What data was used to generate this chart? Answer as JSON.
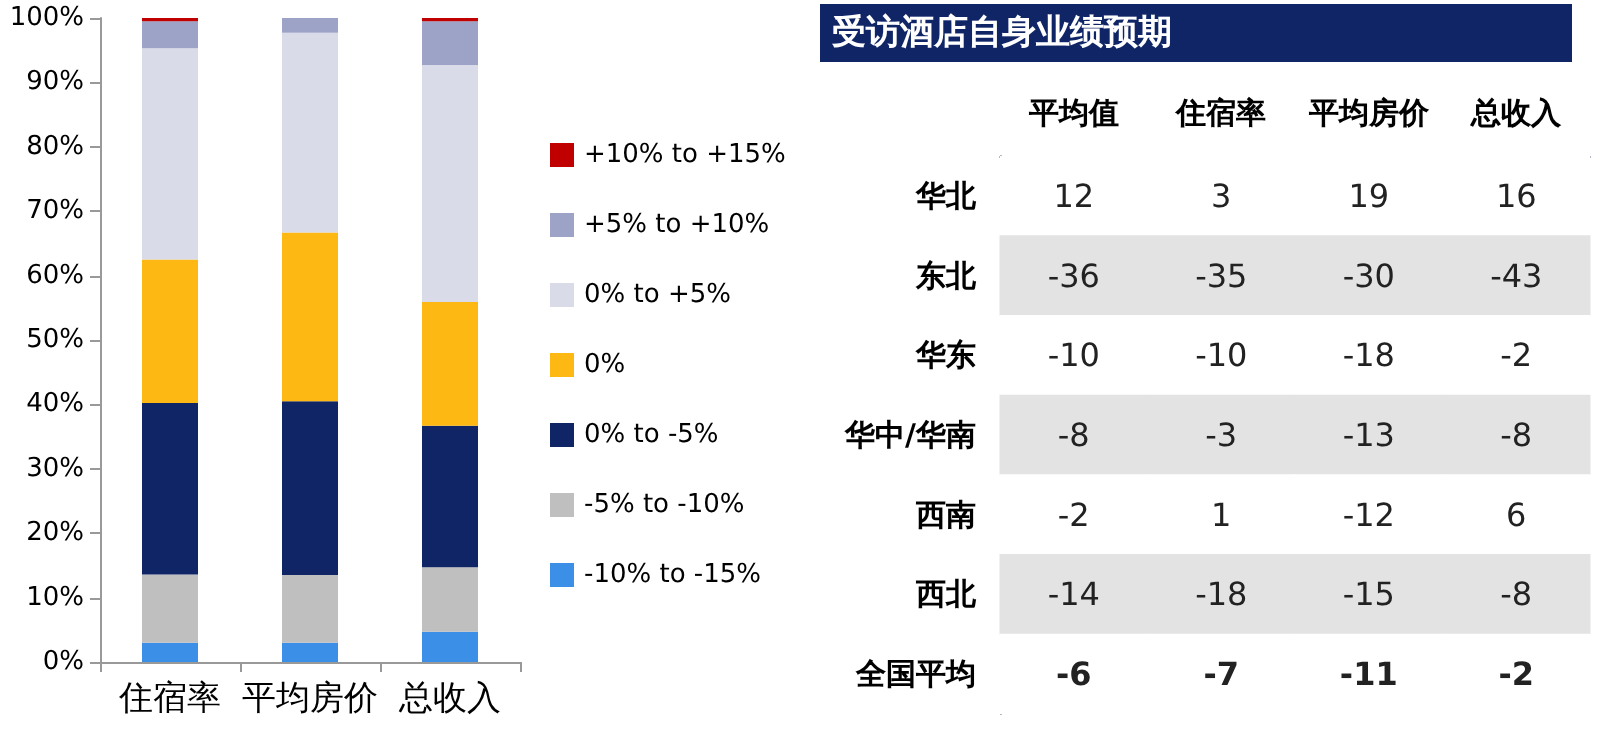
{
  "chart_data": [
    {
      "type": "bar",
      "stacked": true,
      "categories": [
        "住宿率",
        "平均房价",
        "总收入"
      ],
      "series": [
        {
          "name": "-10% to -15%",
          "color": "#3b8fe6",
          "values": [
            3,
            3,
            4.7
          ]
        },
        {
          "name": "-5% to -10%",
          "color": "#bfbfbf",
          "values": [
            10.6,
            10.5,
            10
          ]
        },
        {
          "name": "0% to -5%",
          "color": "#0f2565",
          "values": [
            26.6,
            27,
            22
          ]
        },
        {
          "name": "0%",
          "color": "#fdb814",
          "values": [
            22.3,
            26.2,
            19.2
          ]
        },
        {
          "name": "0% to +5%",
          "color": "#d9dbe9",
          "values": [
            32.8,
            31,
            36.8
          ]
        },
        {
          "name": "+5% to +10%",
          "color": "#9da3c7",
          "values": [
            4.2,
            2.3,
            6.8
          ]
        },
        {
          "name": "+10% to +15%",
          "color": "#c00000",
          "values": [
            0.5,
            0,
            0.5
          ]
        }
      ],
      "ylim": [
        0,
        100
      ],
      "yticks": [
        {
          "value": 0,
          "label": "0%"
        },
        {
          "value": 10,
          "label": "10%"
        },
        {
          "value": 20,
          "label": "20%"
        },
        {
          "value": 30,
          "label": "30%"
        },
        {
          "value": 40,
          "label": "40%"
        },
        {
          "value": 50,
          "label": "50%"
        },
        {
          "value": 60,
          "label": "60%"
        },
        {
          "value": 70,
          "label": "70%"
        },
        {
          "value": 80,
          "label": "80%"
        },
        {
          "value": 90,
          "label": "90%"
        },
        {
          "value": 100,
          "label": "100%"
        }
      ],
      "grid": false,
      "legend": "right"
    },
    {
      "type": "heatmap",
      "title": "受访酒店自身业绩预期",
      "categories": [
        "平均值",
        "住宿率",
        "平均房价",
        "总收入"
      ],
      "y_categories": [
        "华北",
        "东北",
        "华东",
        "华中/华南",
        "西南",
        "西北",
        "全国平均"
      ],
      "cells": [
        [
          12,
          3,
          19,
          16
        ],
        [
          -36,
          -35,
          -30,
          -43
        ],
        [
          -10,
          -10,
          -18,
          -2
        ],
        [
          -8,
          -3,
          -13,
          -8
        ],
        [
          -2,
          1,
          -12,
          6
        ],
        [
          -14,
          -18,
          -15,
          -8
        ],
        [
          -6,
          -7,
          -11,
          -2
        ]
      ],
      "data_labels": true
    }
  ]
}
